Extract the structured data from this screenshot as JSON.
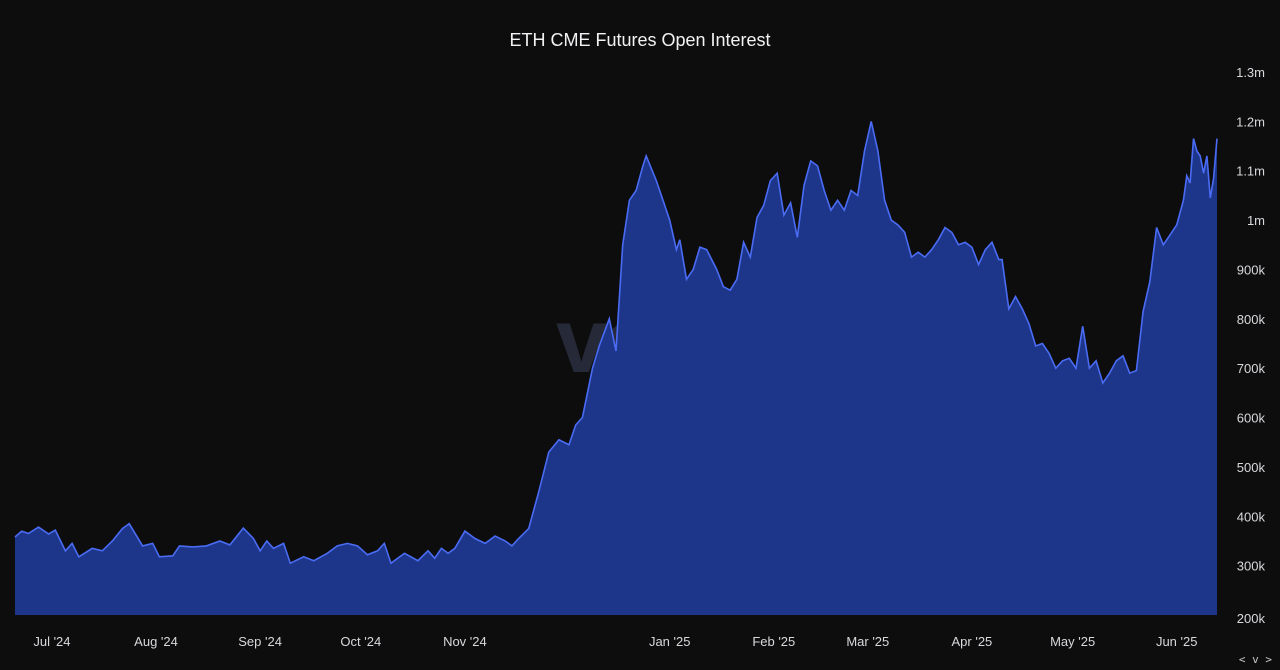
{
  "chart_data": {
    "type": "area",
    "title": "ETH CME Futures Open Interest",
    "watermark": "velo",
    "xlabel": "",
    "ylabel": "",
    "x_range": [
      "2024-06-20",
      "2025-06-13"
    ],
    "ylim": [
      200000,
      1300000
    ],
    "y_ticks": [
      {
        "value": 300000,
        "label": "300k"
      },
      {
        "value": 400000,
        "label": "400k"
      },
      {
        "value": 500000,
        "label": "500k"
      },
      {
        "value": 600000,
        "label": "600k"
      },
      {
        "value": 700000,
        "label": "700k"
      },
      {
        "value": 800000,
        "label": "800k"
      },
      {
        "value": 900000,
        "label": "900k"
      },
      {
        "value": 1000000,
        "label": "1m"
      },
      {
        "value": 1100000,
        "label": "1.1m"
      },
      {
        "value": 1200000,
        "label": "1.2m"
      },
      {
        "value": 1300000,
        "label": "1.3m"
      }
    ],
    "y_bottom_label": "200k",
    "x_ticks": [
      {
        "date": "2024-07-01",
        "label": "Jul '24"
      },
      {
        "date": "2024-08-01",
        "label": "Aug '24"
      },
      {
        "date": "2024-09-01",
        "label": "Sep '24"
      },
      {
        "date": "2024-10-01",
        "label": "Oct '24"
      },
      {
        "date": "2024-11-01",
        "label": "Nov '24"
      },
      {
        "date": "2025-01-01",
        "label": "Jan '25"
      },
      {
        "date": "2025-02-01",
        "label": "Feb '25"
      },
      {
        "date": "2025-03-01",
        "label": "Mar '25"
      },
      {
        "date": "2025-04-01",
        "label": "Apr '25"
      },
      {
        "date": "2025-05-01",
        "label": "May '25"
      },
      {
        "date": "2025-06-01",
        "label": "Jun '25"
      }
    ],
    "series": [
      {
        "values": [
          [
            "2024-06-20",
            358000
          ],
          [
            "2024-06-22",
            370000
          ],
          [
            "2024-06-24",
            365000
          ],
          [
            "2024-06-27",
            378000
          ],
          [
            "2024-06-30",
            364000
          ],
          [
            "2024-07-02",
            372000
          ],
          [
            "2024-07-05",
            330000
          ],
          [
            "2024-07-07",
            345000
          ],
          [
            "2024-07-09",
            318000
          ],
          [
            "2024-07-13",
            335000
          ],
          [
            "2024-07-16",
            330000
          ],
          [
            "2024-07-19",
            350000
          ],
          [
            "2024-07-22",
            375000
          ],
          [
            "2024-07-24",
            385000
          ],
          [
            "2024-07-28",
            340000
          ],
          [
            "2024-07-31",
            345000
          ],
          [
            "2024-08-02",
            318000
          ],
          [
            "2024-08-06",
            320000
          ],
          [
            "2024-08-08",
            340000
          ],
          [
            "2024-08-12",
            338000
          ],
          [
            "2024-08-16",
            340000
          ],
          [
            "2024-08-20",
            350000
          ],
          [
            "2024-08-23",
            342000
          ],
          [
            "2024-08-27",
            376000
          ],
          [
            "2024-08-30",
            355000
          ],
          [
            "2024-09-01",
            330000
          ],
          [
            "2024-09-03",
            350000
          ],
          [
            "2024-09-05",
            335000
          ],
          [
            "2024-09-08",
            345000
          ],
          [
            "2024-09-10",
            305000
          ],
          [
            "2024-09-14",
            318000
          ],
          [
            "2024-09-17",
            310000
          ],
          [
            "2024-09-21",
            325000
          ],
          [
            "2024-09-24",
            340000
          ],
          [
            "2024-09-27",
            345000
          ],
          [
            "2024-09-30",
            340000
          ],
          [
            "2024-10-03",
            322000
          ],
          [
            "2024-10-06",
            330000
          ],
          [
            "2024-10-08",
            345000
          ],
          [
            "2024-10-10",
            305000
          ],
          [
            "2024-10-14",
            325000
          ],
          [
            "2024-10-18",
            310000
          ],
          [
            "2024-10-21",
            330000
          ],
          [
            "2024-10-23",
            315000
          ],
          [
            "2024-10-25",
            335000
          ],
          [
            "2024-10-27",
            325000
          ],
          [
            "2024-10-29",
            335000
          ],
          [
            "2024-11-01",
            370000
          ],
          [
            "2024-11-04",
            355000
          ],
          [
            "2024-11-07",
            345000
          ],
          [
            "2024-11-10",
            360000
          ],
          [
            "2024-11-13",
            350000
          ],
          [
            "2024-11-15",
            340000
          ],
          [
            "2024-11-17",
            355000
          ],
          [
            "2024-11-20",
            375000
          ],
          [
            "2024-11-23",
            450000
          ],
          [
            "2024-11-26",
            530000
          ],
          [
            "2024-11-29",
            555000
          ],
          [
            "2024-12-02",
            545000
          ],
          [
            "2024-12-04",
            585000
          ],
          [
            "2024-12-06",
            600000
          ],
          [
            "2024-12-09",
            700000
          ],
          [
            "2024-12-11",
            745000
          ],
          [
            "2024-12-14",
            800000
          ],
          [
            "2024-12-16",
            735000
          ],
          [
            "2024-12-18",
            950000
          ],
          [
            "2024-12-20",
            1040000
          ],
          [
            "2024-12-22",
            1060000
          ],
          [
            "2024-12-24",
            1110000
          ],
          [
            "2024-12-25",
            1130000
          ],
          [
            "2024-12-28",
            1080000
          ],
          [
            "2024-12-30",
            1040000
          ],
          [
            "2025-01-01",
            1000000
          ],
          [
            "2025-01-03",
            940000
          ],
          [
            "2025-01-04",
            960000
          ],
          [
            "2025-01-06",
            880000
          ],
          [
            "2025-01-08",
            900000
          ],
          [
            "2025-01-10",
            945000
          ],
          [
            "2025-01-12",
            940000
          ],
          [
            "2025-01-15",
            900000
          ],
          [
            "2025-01-17",
            865000
          ],
          [
            "2025-01-19",
            858000
          ],
          [
            "2025-01-21",
            880000
          ],
          [
            "2025-01-23",
            955000
          ],
          [
            "2025-01-25",
            925000
          ],
          [
            "2025-01-27",
            1005000
          ],
          [
            "2025-01-29",
            1030000
          ],
          [
            "2025-01-31",
            1080000
          ],
          [
            "2025-02-02",
            1095000
          ],
          [
            "2025-02-04",
            1010000
          ],
          [
            "2025-02-06",
            1035000
          ],
          [
            "2025-02-08",
            965000
          ],
          [
            "2025-02-10",
            1070000
          ],
          [
            "2025-02-12",
            1120000
          ],
          [
            "2025-02-14",
            1110000
          ],
          [
            "2025-02-16",
            1060000
          ],
          [
            "2025-02-18",
            1020000
          ],
          [
            "2025-02-20",
            1040000
          ],
          [
            "2025-02-22",
            1020000
          ],
          [
            "2025-02-24",
            1060000
          ],
          [
            "2025-02-26",
            1050000
          ],
          [
            "2025-02-28",
            1140000
          ],
          [
            "2025-03-02",
            1200000
          ],
          [
            "2025-03-04",
            1140000
          ],
          [
            "2025-03-06",
            1040000
          ],
          [
            "2025-03-08",
            1000000
          ],
          [
            "2025-03-10",
            990000
          ],
          [
            "2025-03-12",
            975000
          ],
          [
            "2025-03-14",
            925000
          ],
          [
            "2025-03-16",
            935000
          ],
          [
            "2025-03-18",
            925000
          ],
          [
            "2025-03-20",
            940000
          ],
          [
            "2025-03-22",
            960000
          ],
          [
            "2025-03-24",
            985000
          ],
          [
            "2025-03-26",
            975000
          ],
          [
            "2025-03-28",
            950000
          ],
          [
            "2025-03-30",
            955000
          ],
          [
            "2025-04-01",
            945000
          ],
          [
            "2025-04-03",
            910000
          ],
          [
            "2025-04-05",
            940000
          ],
          [
            "2025-04-07",
            955000
          ],
          [
            "2025-04-09",
            920000
          ],
          [
            "2025-04-10",
            920000
          ],
          [
            "2025-04-12",
            820000
          ],
          [
            "2025-04-14",
            845000
          ],
          [
            "2025-04-16",
            820000
          ],
          [
            "2025-04-18",
            790000
          ],
          [
            "2025-04-20",
            745000
          ],
          [
            "2025-04-22",
            750000
          ],
          [
            "2025-04-24",
            730000
          ],
          [
            "2025-04-26",
            700000
          ],
          [
            "2025-04-28",
            715000
          ],
          [
            "2025-04-30",
            720000
          ],
          [
            "2025-05-02",
            700000
          ],
          [
            "2025-05-04",
            785000
          ],
          [
            "2025-05-06",
            700000
          ],
          [
            "2025-05-08",
            715000
          ],
          [
            "2025-05-10",
            670000
          ],
          [
            "2025-05-12",
            690000
          ],
          [
            "2025-05-14",
            715000
          ],
          [
            "2025-05-16",
            725000
          ],
          [
            "2025-05-18",
            690000
          ],
          [
            "2025-05-20",
            695000
          ],
          [
            "2025-05-22",
            815000
          ],
          [
            "2025-05-24",
            875000
          ],
          [
            "2025-05-26",
            985000
          ],
          [
            "2025-05-28",
            950000
          ],
          [
            "2025-05-30",
            970000
          ],
          [
            "2025-06-01",
            990000
          ],
          [
            "2025-06-03",
            1040000
          ],
          [
            "2025-06-04",
            1090000
          ],
          [
            "2025-06-05",
            1075000
          ],
          [
            "2025-06-06",
            1165000
          ],
          [
            "2025-06-07",
            1140000
          ],
          [
            "2025-06-08",
            1130000
          ],
          [
            "2025-06-09",
            1095000
          ],
          [
            "2025-06-10",
            1130000
          ],
          [
            "2025-06-11",
            1045000
          ],
          [
            "2025-06-12",
            1085000
          ],
          [
            "2025-06-13",
            1165000
          ]
        ],
        "fill_color": "#1e3689",
        "line_color": "#4a6cf5"
      }
    ],
    "background_color": "#0d0d0e",
    "grid": false,
    "legend": "none"
  },
  "controls": {
    "nav_label": "< v >"
  }
}
